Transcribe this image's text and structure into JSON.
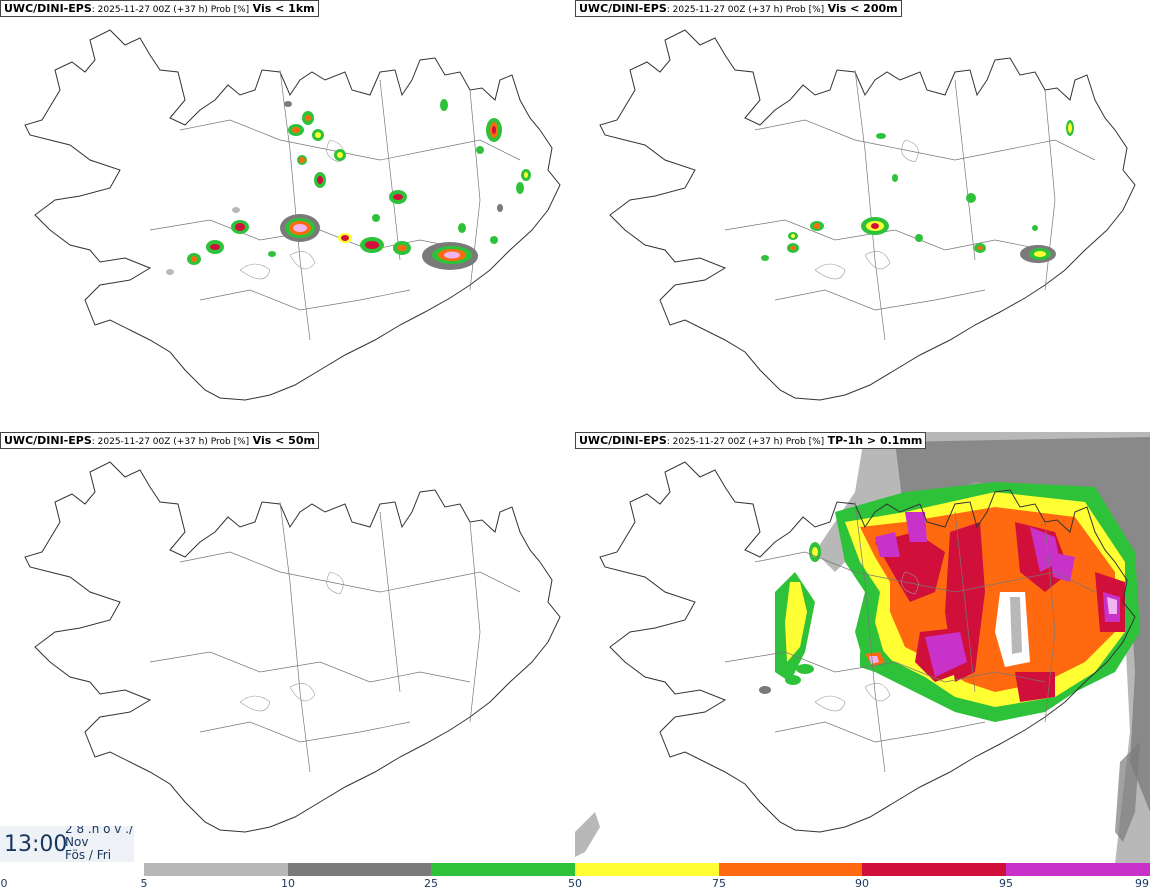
{
  "panels": [
    {
      "model": "UWC/DINI-EPS",
      "meta": ": 2025-11-27 00Z (+37 h) Prob [%]",
      "variable": "Vis < 1km"
    },
    {
      "model": "UWC/DINI-EPS",
      "meta": ": 2025-11-27 00Z (+37 h) Prob [%]",
      "variable": "Vis < 200m"
    },
    {
      "model": "UWC/DINI-EPS",
      "meta": ": 2025-11-27 00Z (+37 h) Prob [%]",
      "variable": "Vis < 50m"
    },
    {
      "model": "UWC/DINI-EPS",
      "meta": ": 2025-11-27 00Z (+37 h) Prob [%]",
      "variable": "TP-1h > 0.1mm"
    }
  ],
  "time": {
    "clock": "13:00",
    "line1": "2 8 .n o v ./",
    "line2": "Nov",
    "line3": "Fös / Fri"
  },
  "legend": {
    "ticks": [
      "0",
      "5",
      "10",
      "25",
      "50",
      "75",
      "90",
      "95",
      "99"
    ],
    "colors": [
      "#b8b8b8",
      "#7a7a7a",
      "#2ec23a",
      "#ffff33",
      "#ff6a10",
      "#d0103a",
      "#c832c8",
      "#f0b4f0"
    ]
  }
}
